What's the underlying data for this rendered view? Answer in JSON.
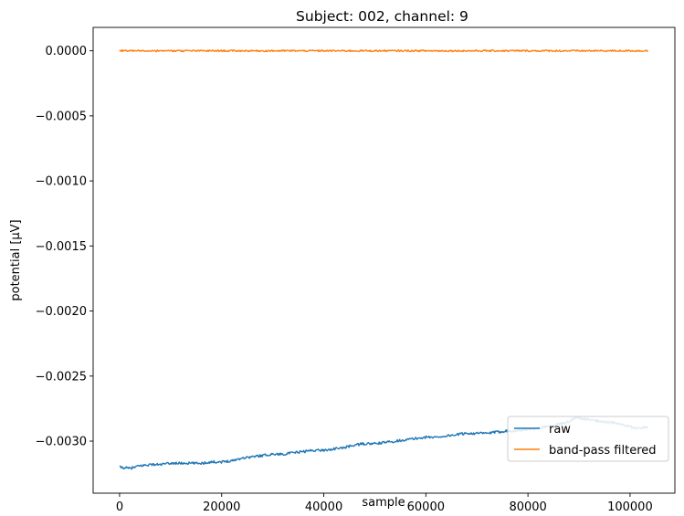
{
  "chart_data": {
    "type": "line",
    "title": "Subject: 002, channel: 9",
    "xlabel": "sample",
    "ylabel": "potential [µV]",
    "xlim": [
      -5180,
      108780
    ],
    "ylim": [
      -0.0034,
      0.00018
    ],
    "xticks": [
      0,
      20000,
      40000,
      60000,
      80000,
      100000
    ],
    "xtick_labels": [
      "0",
      "20000",
      "40000",
      "60000",
      "80000",
      "100000"
    ],
    "yticks": [
      0.0,
      -0.0005,
      -0.001,
      -0.0015,
      -0.002,
      -0.0025,
      -0.003
    ],
    "ytick_labels": [
      "0.0000",
      "−0.0005",
      "−0.0010",
      "−0.0015",
      "−0.0020",
      "−0.0025",
      "−0.0030"
    ],
    "grid": false,
    "legend_position": "lower-right",
    "series": [
      {
        "name": "raw",
        "color": "#1f77b4",
        "x": [
          0,
          2000,
          4000,
          6000,
          8000,
          10000,
          12000,
          14000,
          16000,
          18000,
          20000,
          22000,
          24000,
          26000,
          28000,
          30000,
          32000,
          34000,
          36000,
          38000,
          40000,
          42000,
          44000,
          46000,
          48000,
          50000,
          52000,
          54000,
          56000,
          58000,
          60000,
          62000,
          64000,
          66000,
          68000,
          70000,
          72000,
          74000,
          76000,
          78000,
          80000,
          82000,
          84000,
          86000,
          88000,
          89500,
          91000,
          93000,
          95000,
          97000,
          99000,
          101000,
          103500
        ],
        "y": [
          -0.0032,
          -0.00321,
          -0.00319,
          -0.00318,
          -0.00318,
          -0.00317,
          -0.00317,
          -0.00317,
          -0.00317,
          -0.00316,
          -0.00316,
          -0.00315,
          -0.00313,
          -0.00312,
          -0.00311,
          -0.0031,
          -0.0031,
          -0.00309,
          -0.00308,
          -0.00307,
          -0.00307,
          -0.00306,
          -0.00305,
          -0.00303,
          -0.00302,
          -0.00302,
          -0.00301,
          -0.003,
          -0.00299,
          -0.00298,
          -0.00297,
          -0.00297,
          -0.00296,
          -0.00295,
          -0.00294,
          -0.00294,
          -0.00294,
          -0.00293,
          -0.00292,
          -0.00292,
          -0.00291,
          -0.0029,
          -0.00289,
          -0.00287,
          -0.00285,
          -0.00282,
          -0.00283,
          -0.00284,
          -0.00285,
          -0.00286,
          -0.00288,
          -0.0029,
          -0.00289
        ]
      },
      {
        "name": "band-pass filtered",
        "color": "#ff7f0e",
        "x": [
          0,
          10000,
          20000,
          30000,
          40000,
          50000,
          60000,
          70000,
          80000,
          90000,
          103500
        ],
        "y": [
          0.0,
          0.0,
          0.0,
          0.0,
          0.0,
          0.0,
          0.0,
          0.0,
          0.0,
          0.0,
          0.0
        ]
      }
    ]
  }
}
